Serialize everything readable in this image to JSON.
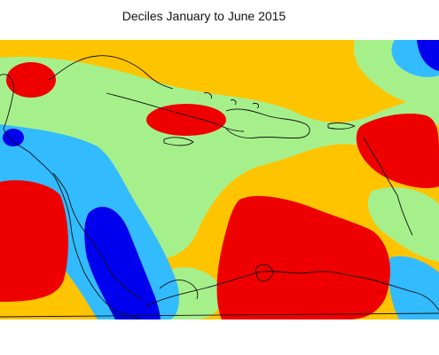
{
  "title": "Deciles January to June 2015",
  "palette": {
    "red": "#ee0000",
    "orange": "#ffc400",
    "light_green": "#a6f08c",
    "light_blue": "#33bbff",
    "dark_blue": "#0000ee",
    "coastline": "#111111",
    "background": "#ffffff"
  }
}
